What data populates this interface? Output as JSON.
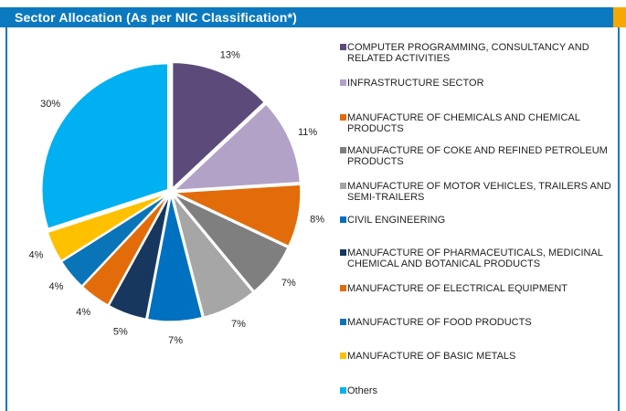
{
  "chart_data": {
    "type": "pie",
    "title": "Sector Allocation (As per NIC Classification*)",
    "categories": [
      "COMPUTER PROGRAMMING, CONSULTANCY AND RELATED ACTIVITIES",
      "INFRASTRUCTURE SECTOR",
      "MANUFACTURE OF CHEMICALS AND CHEMICAL PRODUCTS",
      "MANUFACTURE OF COKE AND REFINED PETROLEUM PRODUCTS",
      "MANUFACTURE OF MOTOR VEHICLES, TRAILERS AND SEMI-TRAILERS",
      "CIVIL ENGINEERING",
      "MANUFACTURE OF PHARMACEUTICALS, MEDICINAL CHEMICAL AND BOTANICAL PRODUCTS",
      "MANUFACTURE OF ELECTRICAL EQUIPMENT",
      "MANUFACTURE OF FOOD PRODUCTS",
      "MANUFACTURE OF BASIC METALS",
      "Others"
    ],
    "values": [
      13,
      11,
      8,
      7,
      7,
      7,
      5,
      4,
      4,
      4,
      30
    ],
    "value_labels": [
      "13%",
      "11%",
      "8%",
      "7%",
      "7%",
      "7%",
      "5%",
      "4%",
      "4%",
      "4%",
      "30%"
    ],
    "colors": [
      "#5b4a7a",
      "#b3a2c8",
      "#e36c0a",
      "#7f7f7f",
      "#a6a6a6",
      "#0070c0",
      "#17375e",
      "#e36c0a",
      "#0a74b8",
      "#ffc000",
      "#00b0f0"
    ]
  }
}
